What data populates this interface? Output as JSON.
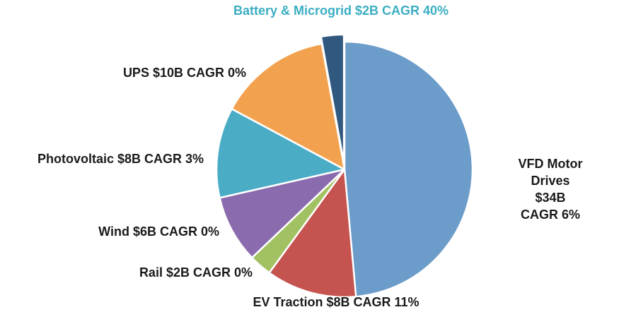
{
  "chart_data": {
    "type": "pie",
    "units": "$B",
    "total": 70,
    "start_angle_deg": 0,
    "direction": "clockwise",
    "legend_position": "outside-labels",
    "slices": [
      {
        "name": "VFD Motor Drives",
        "value": 34,
        "cagr_pct": 6,
        "label": "VFD Motor Drives\n$34B CAGR 6%",
        "color": "#6C9CC9",
        "label_color": "#1a1a1a",
        "exploded": false
      },
      {
        "name": "EV Traction",
        "value": 8,
        "cagr_pct": 11,
        "label": "EV Traction $8B CAGR 11%",
        "color": "#C5534F",
        "label_color": "#1a1a1a",
        "exploded": false
      },
      {
        "name": "Rail",
        "value": 2,
        "cagr_pct": 0,
        "label": "Rail $2B CAGR 0%",
        "color": "#A2C162",
        "label_color": "#1a1a1a",
        "exploded": false
      },
      {
        "name": "Wind",
        "value": 6,
        "cagr_pct": 0,
        "label": "Wind $6B CAGR 0%",
        "color": "#8A6BAD",
        "label_color": "#1a1a1a",
        "exploded": false
      },
      {
        "name": "Photovoltaic",
        "value": 8,
        "cagr_pct": 3,
        "label": "Photovoltaic $8B CAGR 3%",
        "color": "#4BACC6",
        "label_color": "#1a1a1a",
        "exploded": false
      },
      {
        "name": "UPS",
        "value": 10,
        "cagr_pct": 0,
        "label": "UPS $10B CAGR 0%",
        "color": "#F2A24F",
        "label_color": "#1a1a1a",
        "exploded": false
      },
      {
        "name": "Battery & Microgrid",
        "value": 2,
        "cagr_pct": 40,
        "label": "Battery & Microgrid $2B CAGR 40%",
        "color": "#31597F",
        "label_color": "#3BAEC2",
        "exploded": true
      }
    ]
  }
}
